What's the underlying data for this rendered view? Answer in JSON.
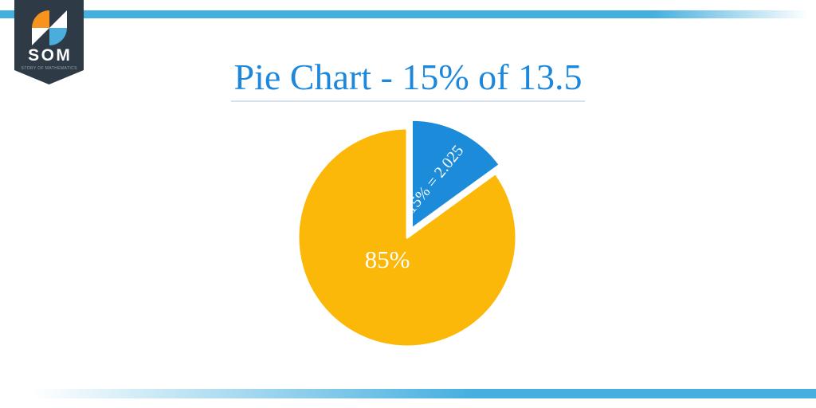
{
  "header": {
    "title": "Pie Chart - 15% of 13.5",
    "title_color": "#1C87DB",
    "underline_color": "#D5E2EE"
  },
  "logo": {
    "acronym": "SOM",
    "tagline": "STORY OF MATHEMATICS",
    "badge_color": "#2E3A45",
    "icon_orange": "#F6941D",
    "icon_blue": "#4BADDC",
    "icon_white": "#FFFFFF",
    "text_color": "#FFFFFF",
    "tagline_color": "#97A2AA"
  },
  "decor": {
    "accent_bar_color": "#45AFDF"
  },
  "chart_data": {
    "type": "pie",
    "title": "Pie Chart - 15% of 13.5",
    "total_value": 13.5,
    "legend": "none",
    "labels_position": "inside",
    "slices": [
      {
        "name": "slice-15-percent",
        "label": "15% = 2.025",
        "value_pct": 15,
        "value_amount": 2.025,
        "color": "#1C8BDA",
        "label_color": "#FFFFFF",
        "explode": 12,
        "label_pos": [
          550,
          229
        ],
        "label_rotation": -51,
        "label_size": 20
      },
      {
        "name": "slice-85-percent",
        "label": "85%",
        "value_pct": 85,
        "color": "#FCB808",
        "label_color": "#FFFFFF",
        "explode": 0,
        "label_pos": [
          486,
          336
        ],
        "label_rotation": 0,
        "label_size": 31
      }
    ],
    "layout": {
      "center": [
        511,
        298
      ],
      "radius": 137,
      "start_angle_deg": 0,
      "slice_stroke": "#FFFFFF",
      "slice_stroke_width": 3
    }
  }
}
